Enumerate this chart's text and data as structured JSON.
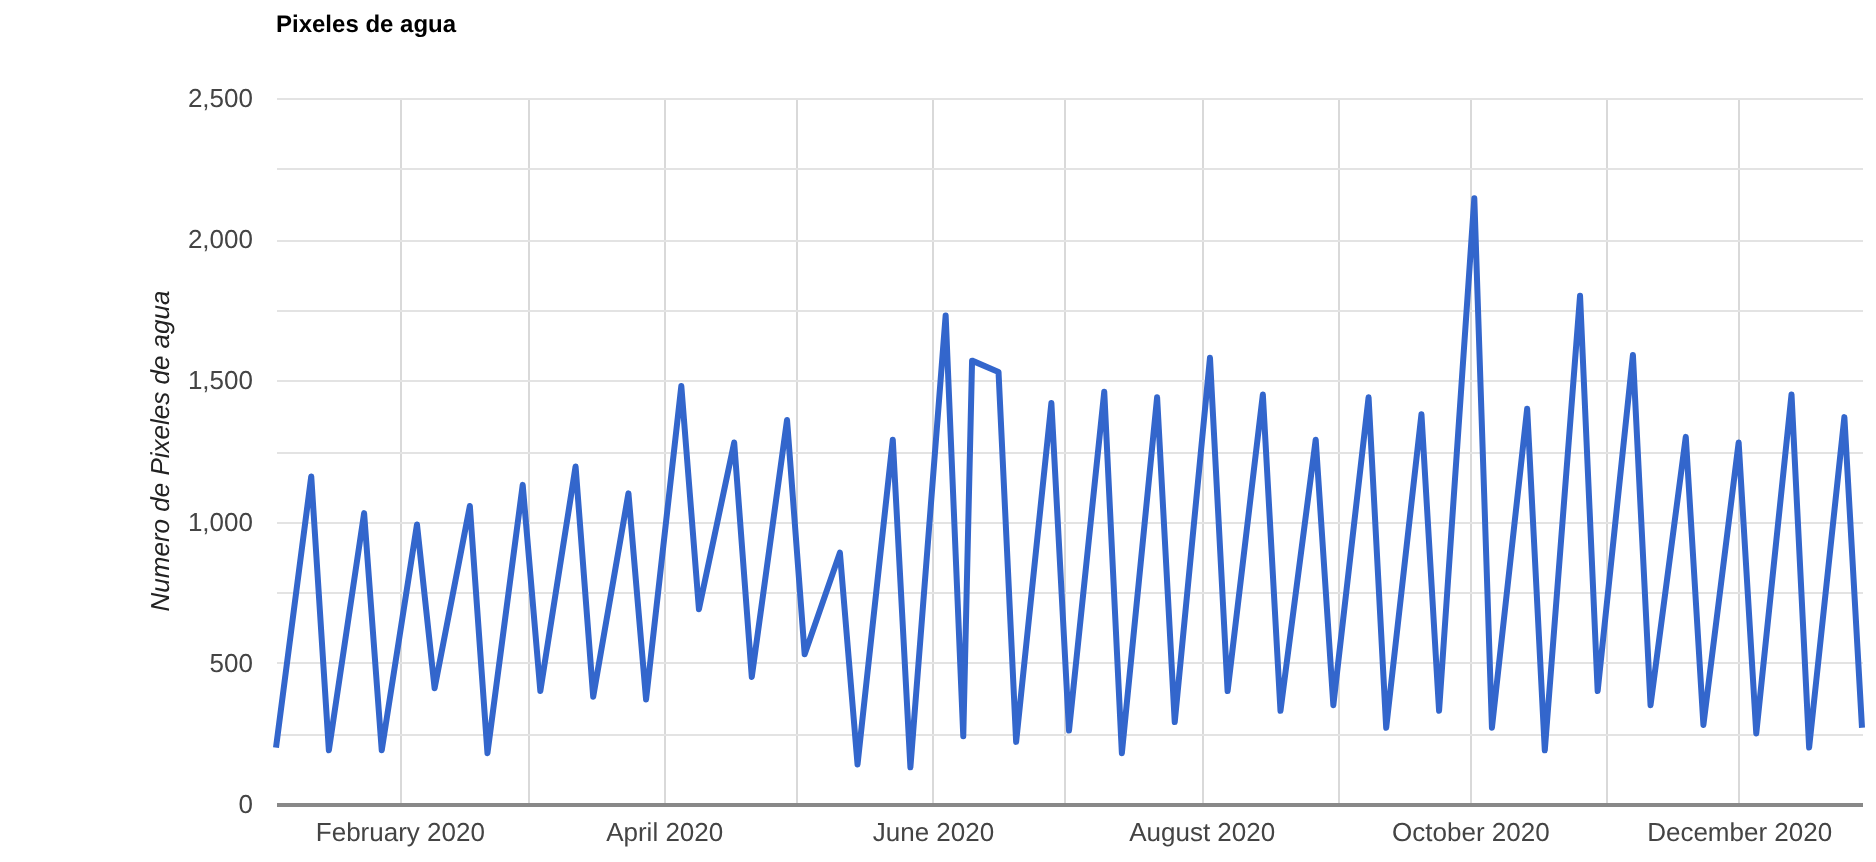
{
  "chart_data": {
    "type": "line",
    "title": "Pixeles de agua",
    "ylabel": "Numero de Pixeles de agua",
    "x": [
      "2020-01-04",
      "2020-01-12",
      "2020-01-16",
      "2020-01-24",
      "2020-01-28",
      "2020-02-05",
      "2020-02-09",
      "2020-02-17",
      "2020-02-21",
      "2020-02-29",
      "2020-03-04",
      "2020-03-12",
      "2020-03-16",
      "2020-03-24",
      "2020-03-28",
      "2020-04-05",
      "2020-04-09",
      "2020-04-17",
      "2020-04-21",
      "2020-04-29",
      "2020-05-03",
      "2020-05-11",
      "2020-05-15",
      "2020-05-23",
      "2020-05-27",
      "2020-06-04",
      "2020-06-08",
      "2020-06-10",
      "2020-06-16",
      "2020-06-20",
      "2020-06-28",
      "2020-07-02",
      "2020-07-10",
      "2020-07-14",
      "2020-07-22",
      "2020-07-26",
      "2020-08-03",
      "2020-08-07",
      "2020-08-15",
      "2020-08-19",
      "2020-08-27",
      "2020-08-31",
      "2020-09-08",
      "2020-09-12",
      "2020-09-20",
      "2020-09-24",
      "2020-10-02",
      "2020-10-06",
      "2020-10-14",
      "2020-10-18",
      "2020-10-26",
      "2020-10-30",
      "2020-11-07",
      "2020-11-11",
      "2020-11-19",
      "2020-11-23",
      "2020-12-01",
      "2020-12-05",
      "2020-12-13",
      "2020-12-17",
      "2020-12-25",
      "2020-12-29"
    ],
    "series": [
      {
        "color": "#3366cc",
        "values": [
          200,
          1160,
          190,
          1030,
          190,
          990,
          410,
          1055,
          180,
          1130,
          400,
          1195,
          380,
          1100,
          370,
          1480,
          690,
          1280,
          450,
          1360,
          530,
          890,
          140,
          1290,
          130,
          1730,
          240,
          1570,
          1530,
          220,
          1420,
          260,
          1460,
          180,
          1440,
          290,
          1580,
          400,
          1450,
          330,
          1290,
          350,
          1440,
          270,
          1380,
          330,
          2145,
          270,
          1400,
          190,
          1800,
          400,
          1590,
          350,
          1300,
          280,
          1280,
          250,
          1450,
          200,
          1370,
          270
        ]
      }
    ],
    "xlim": [
      "2020-01-04",
      "2020-12-29"
    ],
    "xticks": [
      {
        "value": "2020-02",
        "label": "February 2020"
      },
      {
        "value": "2020-03",
        "label": null
      },
      {
        "value": "2020-04",
        "label": "April 2020"
      },
      {
        "value": "2020-05",
        "label": null
      },
      {
        "value": "2020-06",
        "label": "June 2020"
      },
      {
        "value": "2020-07",
        "label": null
      },
      {
        "value": "2020-08",
        "label": "August 2020"
      },
      {
        "value": "2020-09",
        "label": null
      },
      {
        "value": "2020-10",
        "label": "October 2020"
      },
      {
        "value": "2020-11",
        "label": null
      },
      {
        "value": "2020-12",
        "label": "December 2020"
      }
    ],
    "ylim": [
      0,
      2500
    ],
    "yticks": [
      0,
      {
        "value": 250,
        "label": null
      },
      500,
      {
        "value": 750,
        "label": null
      },
      {
        "value": 1000,
        "label": "1,000"
      },
      {
        "value": 1250,
        "label": null
      },
      {
        "value": 1500,
        "label": "1,500"
      },
      {
        "value": 1750,
        "label": null
      },
      {
        "value": 2000,
        "label": "2,000"
      },
      {
        "value": 2250,
        "label": null
      },
      {
        "value": 2500,
        "label": "2,500"
      }
    ],
    "grid": true,
    "line_style": "solid"
  }
}
